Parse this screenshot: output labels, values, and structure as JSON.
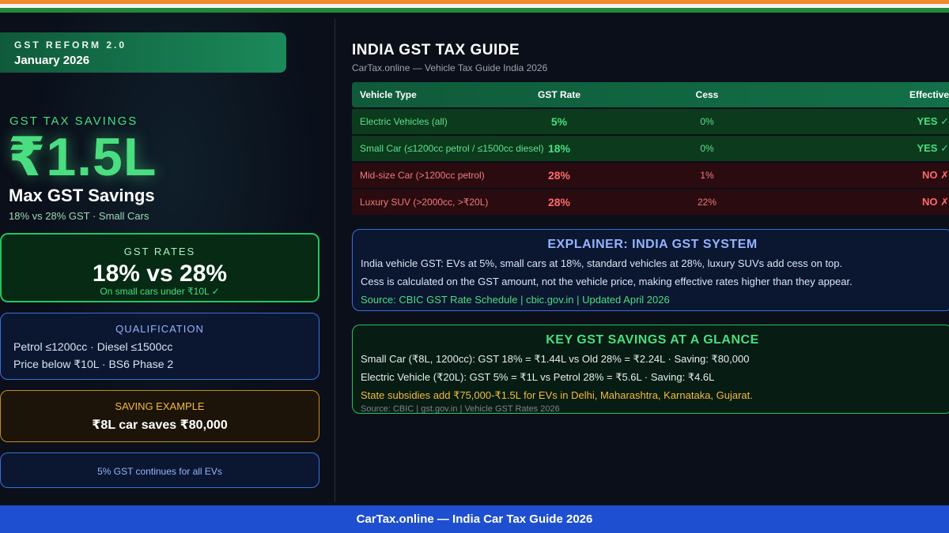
{
  "badge": {
    "kicker": "GST REFORM 2.0",
    "date": "January 2026"
  },
  "hero": {
    "kicker": "GST TAX SAVINGS",
    "amount": "₹1.5L",
    "title": "Max GST Savings",
    "subtitle": "18% vs 28% GST · Small Cars"
  },
  "rates_card": {
    "label": "GST RATES",
    "value": "18% vs 28%",
    "note": "On small cars under ₹10L ✓"
  },
  "qualification_card": {
    "label": "QUALIFICATION",
    "lines": [
      "Petrol ≤1200cc · Diesel ≤1500cc",
      "Price below ₹10L · BS6 Phase 2"
    ]
  },
  "saving_card": {
    "label": "SAVING EXAMPLE",
    "value": "₹8L car saves ₹80,000"
  },
  "ev_card": {
    "text": "5% GST continues for all EVs"
  },
  "main": {
    "title": "INDIA GST TAX GUIDE",
    "subtitle": "CarTax.online — Vehicle Tax Guide India 2026"
  },
  "table": {
    "headers": [
      "Vehicle Type",
      "GST Rate",
      "Cess",
      "Effective"
    ],
    "rows": [
      {
        "type": "Electric Vehicles (all)",
        "gst": "5%",
        "cess": "0%",
        "effective": "YES ✓",
        "status": "green"
      },
      {
        "type": "Small Car (≤1200cc petrol / ≤1500cc diesel)",
        "gst": "18%",
        "cess": "0%",
        "effective": "YES ✓",
        "status": "green"
      },
      {
        "type": "Mid-size Car (>1200cc petrol)",
        "gst": "28%",
        "cess": "1%",
        "effective": "NO ✗",
        "status": "red"
      },
      {
        "type": "Luxury SUV (>2000cc, >₹20L)",
        "gst": "28%",
        "cess": "22%",
        "effective": "NO ✗",
        "status": "red"
      }
    ]
  },
  "explainer": {
    "title": "EXPLAINER: INDIA GST SYSTEM",
    "lines": [
      "India vehicle GST: EVs at 5%, small cars at 18%, standard vehicles at 28%, luxury SUVs add cess on top.",
      "Cess is calculated on the GST amount, not the vehicle price, making effective rates higher than they appear."
    ],
    "source": "Source: CBIC GST Rate Schedule | cbic.gov.in | Updated April 2026"
  },
  "key_savings": {
    "title": "KEY GST SAVINGS AT A GLANCE",
    "lines": [
      "Small Car (₹8L, 1200cc): GST 18% = ₹1.44L vs Old 28% = ₹2.24L · Saving: ₹80,000",
      "Electric Vehicle (₹20L): GST 5% = ₹1L vs Petrol 28% = ₹5.6L · Saving: ₹4.6L"
    ],
    "highlight": "State subsidies add ₹75,000-₹1.5L for EVs in Delhi, Maharashtra, Karnataka, Gujarat.",
    "source": "Source: CBIC | gst.gov.in | Vehicle GST Rates 2026"
  },
  "footer": {
    "text": "CarTax.online — India Car Tax Guide 2026"
  },
  "colors": {
    "accent_green": "#4ade80",
    "accent_red": "#ff6b6b",
    "accent_blue": "#93b4ff",
    "accent_amber": "#f4b942",
    "footer_blue": "#1e4fd0"
  }
}
